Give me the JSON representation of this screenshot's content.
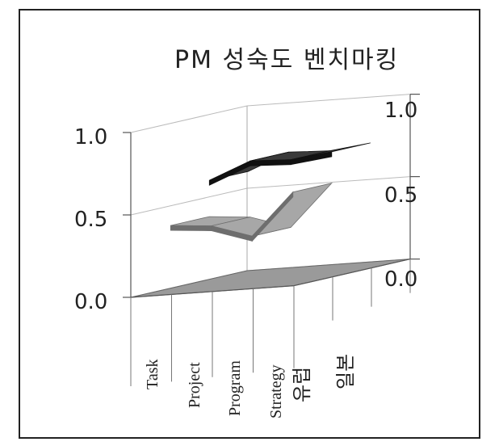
{
  "chart_data": {
    "type": "line",
    "title": "PM 성숙도 벤치마킹",
    "categories": [
      "Task",
      "Project",
      "Program",
      "Strategy"
    ],
    "series": [
      {
        "name": "유럽",
        "values": [
          0.4,
          0.38,
          0.3,
          0.55
        ]
      },
      {
        "name": "일본",
        "values": [
          0.62,
          0.72,
          0.71,
          0.74
        ]
      }
    ],
    "y_ticks_left": [
      "1.0",
      "0.5",
      "0.0"
    ],
    "y_ticks_right": [
      "1.0",
      "0.5",
      "0.0"
    ],
    "ylim": [
      0,
      1
    ],
    "grid": true,
    "legend": "depth-axis"
  }
}
